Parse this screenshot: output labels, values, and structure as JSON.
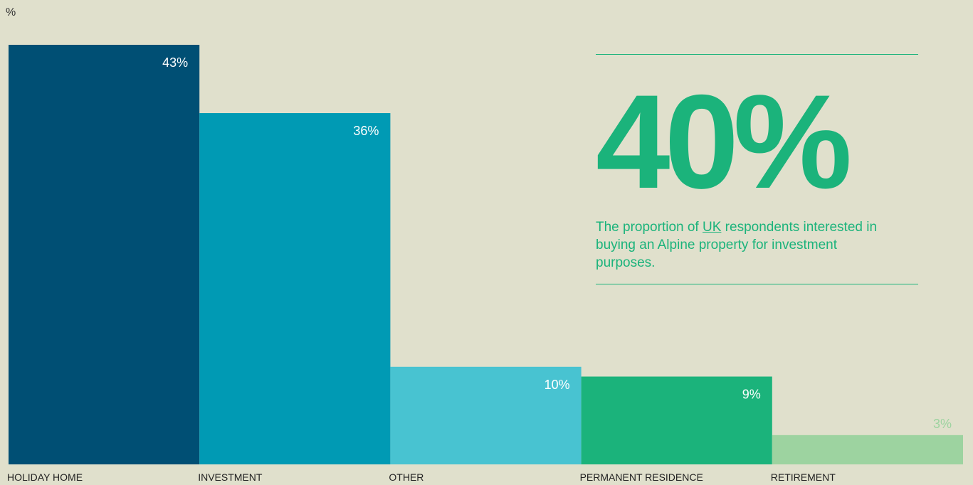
{
  "chart_data": {
    "type": "bar",
    "unit_label": "%",
    "categories": [
      "HOLIDAY HOME",
      "INVESTMENT",
      "OTHER",
      "PERMANENT RESIDENCE",
      "RETIREMENT"
    ],
    "values": [
      43,
      36,
      10,
      9,
      3
    ],
    "value_labels": [
      "43%",
      "36%",
      "10%",
      "9%",
      "3%"
    ],
    "colors": [
      "#004f74",
      "#009ab4",
      "#48c3d1",
      "#1bb37b",
      "#9dd3a0"
    ]
  },
  "callout": {
    "stat": "40%",
    "text_before": "The proportion of ",
    "link": "UK",
    "text_after": " respondents interested in buying an Alpine property for investment purposes."
  }
}
